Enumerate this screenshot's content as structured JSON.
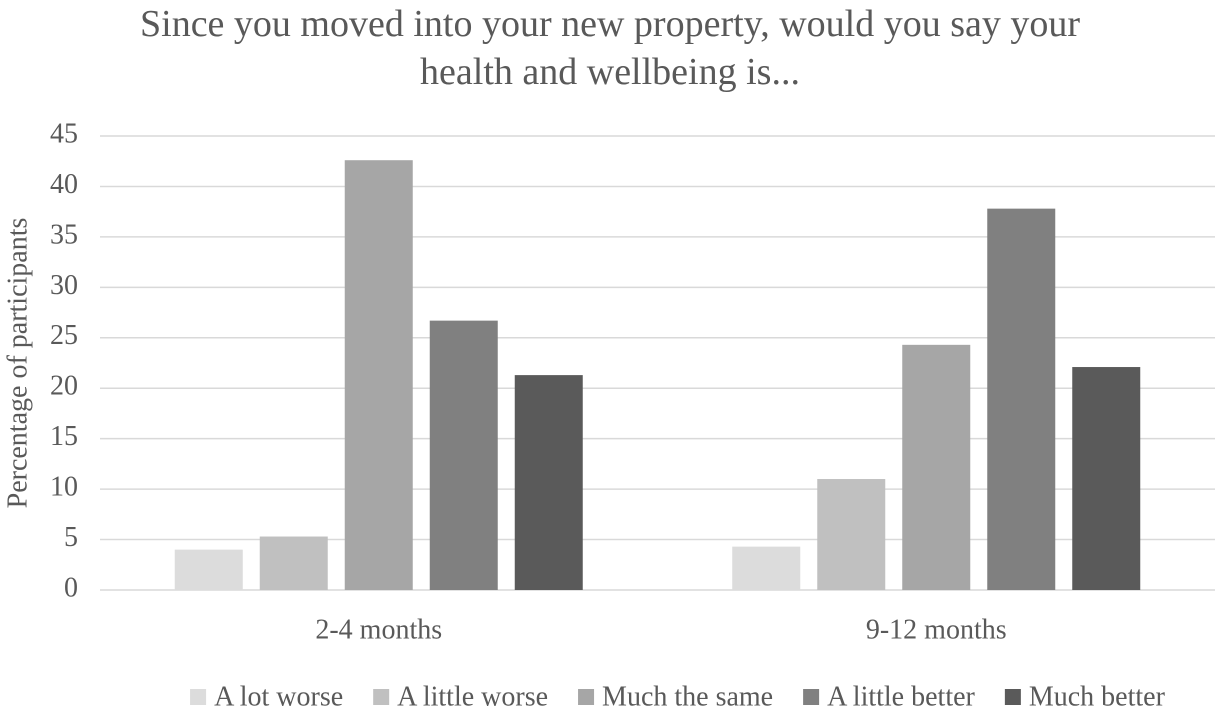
{
  "chart_data": {
    "type": "bar",
    "title": "Since you moved into your new property, would you say your health and wellbeing is...",
    "y_label": "Percentage of participants",
    "categories": [
      "2-4 months",
      "9-12 months"
    ],
    "series": [
      {
        "name": "A lot worse",
        "color": "#dcdcdc",
        "values": [
          4,
          4.3
        ]
      },
      {
        "name": "A little worse",
        "color": "#c0c0c0",
        "values": [
          5.3,
          11
        ]
      },
      {
        "name": "Much the same",
        "color": "#a6a6a6",
        "values": [
          42.6,
          24.3
        ]
      },
      {
        "name": "A little better",
        "color": "#808080",
        "values": [
          26.7,
          37.8
        ]
      },
      {
        "name": "Much better",
        "color": "#5a5a5a",
        "values": [
          21.3,
          22.1
        ]
      }
    ],
    "ylim": [
      0,
      45
    ],
    "yticks": [
      0,
      5,
      10,
      15,
      20,
      25,
      30,
      35,
      40,
      45
    ],
    "grid": true,
    "legend": "bottom"
  }
}
